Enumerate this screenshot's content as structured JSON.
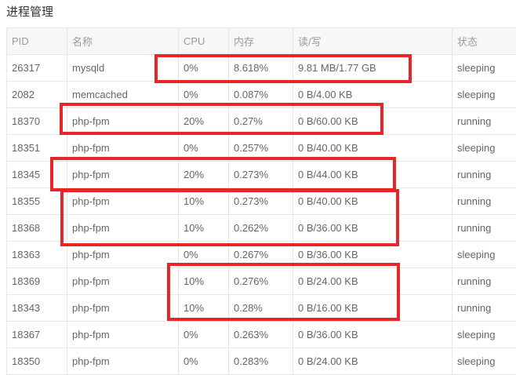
{
  "page": {
    "title": "进程管理"
  },
  "colors": {
    "annotation_red": "#e8262a",
    "header_bg": "#f7f7f8",
    "table_border": "#e7e7e7",
    "header_text": "#9a9a9a",
    "cell_text": "#666666",
    "title_text": "#333333"
  },
  "table": {
    "columns": [
      {
        "key": "pid",
        "label": "PID"
      },
      {
        "key": "name",
        "label": "名称"
      },
      {
        "key": "cpu",
        "label": "CPU"
      },
      {
        "key": "mem",
        "label": "内存"
      },
      {
        "key": "io",
        "label": "读/写"
      },
      {
        "key": "status",
        "label": "状态"
      }
    ],
    "rows": [
      {
        "pid": "26317",
        "name": "mysqld",
        "cpu": "0%",
        "mem": "8.618%",
        "io": "9.81 MB/1.77 GB",
        "status": "sleeping"
      },
      {
        "pid": "2082",
        "name": "memcached",
        "cpu": "0%",
        "mem": "0.087%",
        "io": "0 B/4.00 KB",
        "status": "sleeping"
      },
      {
        "pid": "18370",
        "name": "php-fpm",
        "cpu": "20%",
        "mem": "0.27%",
        "io": "0 B/60.00 KB",
        "status": "running"
      },
      {
        "pid": "18351",
        "name": "php-fpm",
        "cpu": "0%",
        "mem": "0.257%",
        "io": "0 B/40.00 KB",
        "status": "sleeping"
      },
      {
        "pid": "18345",
        "name": "php-fpm",
        "cpu": "20%",
        "mem": "0.273%",
        "io": "0 B/44.00 KB",
        "status": "running"
      },
      {
        "pid": "18355",
        "name": "php-fpm",
        "cpu": "10%",
        "mem": "0.273%",
        "io": "0 B/40.00 KB",
        "status": "running"
      },
      {
        "pid": "18368",
        "name": "php-fpm",
        "cpu": "10%",
        "mem": "0.262%",
        "io": "0 B/36.00 KB",
        "status": "running"
      },
      {
        "pid": "18363",
        "name": "php-fpm",
        "cpu": "0%",
        "mem": "0.267%",
        "io": "0 B/36.00 KB",
        "status": "sleeping"
      },
      {
        "pid": "18369",
        "name": "php-fpm",
        "cpu": "10%",
        "mem": "0.276%",
        "io": "0 B/24.00 KB",
        "status": "running"
      },
      {
        "pid": "18343",
        "name": "php-fpm",
        "cpu": "10%",
        "mem": "0.28%",
        "io": "0 B/16.00 KB",
        "status": "running"
      },
      {
        "pid": "18367",
        "name": "php-fpm",
        "cpu": "0%",
        "mem": "0.263%",
        "io": "0 B/36.00 KB",
        "status": "sleeping"
      },
      {
        "pid": "18350",
        "name": "php-fpm",
        "cpu": "0%",
        "mem": "0.283%",
        "io": "0 B/24.00 KB",
        "status": "sleeping"
      }
    ]
  }
}
